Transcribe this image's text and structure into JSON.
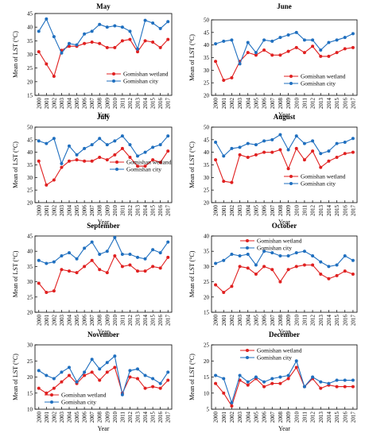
{
  "chart_data": [
    {
      "type": "line",
      "title": "May",
      "xlabel": "Year",
      "ylabel": "Mean of LST (°C)",
      "ylim": [
        15,
        45
      ],
      "yticks": [
        15,
        20,
        25,
        30,
        35,
        40,
        45
      ],
      "x": [
        "2000",
        "2001",
        "2002",
        "2003",
        "2004",
        "2005",
        "2006",
        "2007",
        "2008",
        "2009",
        "2010",
        "2011",
        "2012",
        "2013",
        "2014",
        "2015",
        "2016",
        "2017"
      ],
      "legend_position": "bottom-right",
      "series": [
        {
          "name": "Gomishan wetland",
          "color": "#e02020",
          "values": [
            31,
            26.5,
            22,
            31.5,
            33,
            33,
            34,
            34.5,
            34,
            32.5,
            32.5,
            35,
            35.5,
            31,
            35,
            34.5,
            32.5,
            35.5
          ]
        },
        {
          "name": "Gomishan city",
          "color": "#1f6fbf",
          "values": [
            38.5,
            43,
            36.5,
            30.5,
            34,
            33.5,
            37.5,
            38.5,
            41,
            40,
            40.5,
            40,
            38.5,
            32,
            42.5,
            41.5,
            39.5,
            42
          ]
        }
      ]
    },
    {
      "type": "line",
      "title": "June",
      "xlabel": "Year",
      "ylabel": "Mean of LST (°C)",
      "ylim": [
        20,
        50
      ],
      "yticks": [
        20,
        25,
        30,
        35,
        40,
        45,
        50
      ],
      "x": [
        "2000",
        "2001",
        "2002",
        "2003",
        "2004",
        "2005",
        "2006",
        "2007",
        "2008",
        "2009",
        "2010",
        "2011",
        "2012",
        "2013",
        "2014",
        "2015",
        "2016",
        "2017"
      ],
      "legend_position": "bottom-right",
      "series": [
        {
          "name": "Gomishan wetland",
          "color": "#e02020",
          "values": [
            33.5,
            26,
            27,
            33.5,
            37,
            36,
            38,
            36,
            36,
            37.5,
            39,
            37,
            39.5,
            35.5,
            35.5,
            37,
            38.5,
            39
          ]
        },
        {
          "name": "Gomishan city",
          "color": "#1f6fbf",
          "values": [
            40.5,
            41.5,
            42,
            32.5,
            41,
            37,
            42,
            41.5,
            43,
            44,
            45,
            42,
            42,
            38,
            41,
            42,
            43,
            44.5
          ]
        }
      ]
    },
    {
      "type": "line",
      "title": "July",
      "xlabel": "Year",
      "ylabel": "Mean of LST (°C)",
      "ylim": [
        20,
        50
      ],
      "yticks": [
        20,
        25,
        30,
        35,
        40,
        45,
        50
      ],
      "x": [
        "2000",
        "2001",
        "2002",
        "2003",
        "2004",
        "2005",
        "2006",
        "2007",
        "2008",
        "2009",
        "2010",
        "2011",
        "2012",
        "2013",
        "2014",
        "2015",
        "2016",
        "2017"
      ],
      "legend_position": "middle-right",
      "series": [
        {
          "name": "Gomishan wetland",
          "color": "#e02020",
          "values": [
            36.5,
            27,
            29,
            34,
            36.5,
            37,
            36.5,
            36.5,
            38,
            37,
            39,
            41.5,
            38,
            34.5,
            34.5,
            37,
            36,
            40.5
          ]
        },
        {
          "name": "Gomishan city",
          "color": "#1f6fbf",
          "values": [
            44.5,
            43.5,
            45.5,
            35.5,
            42.5,
            39,
            41.5,
            43,
            45.5,
            43,
            44.5,
            46.5,
            43,
            38.5,
            40,
            42,
            43,
            46.5
          ]
        }
      ]
    },
    {
      "type": "line",
      "title": "August",
      "xlabel": "Year",
      "ylabel": "Mean of LST (°C)",
      "ylim": [
        20,
        50
      ],
      "yticks": [
        20,
        25,
        30,
        35,
        40,
        45,
        50
      ],
      "x": [
        "2000",
        "2001",
        "2002",
        "2003",
        "2004",
        "2005",
        "2006",
        "2007",
        "2008",
        "2009",
        "2010",
        "2011",
        "2012",
        "2013",
        "2014",
        "2015",
        "2016",
        "2017"
      ],
      "legend_position": "bottom-right",
      "series": [
        {
          "name": "Gomishan wetland",
          "color": "#e02020",
          "values": [
            37,
            28.5,
            28,
            39,
            38,
            39,
            40,
            40,
            41,
            33.5,
            41.5,
            37,
            40.5,
            34,
            36.5,
            38,
            39.5,
            40
          ]
        },
        {
          "name": "Gomishan city",
          "color": "#1f6fbf",
          "values": [
            44,
            38.5,
            41.5,
            42,
            43.5,
            43,
            44.5,
            45,
            47,
            41,
            46.5,
            43.5,
            44.5,
            39.5,
            40.5,
            43.5,
            44,
            45.5
          ]
        }
      ]
    },
    {
      "type": "line",
      "title": "September",
      "xlabel": "Year",
      "ylabel": "Mean of LST (°C)",
      "ylim": [
        20,
        45
      ],
      "yticks": [
        20,
        25,
        30,
        35,
        40,
        45
      ],
      "x": [
        "2000",
        "2001",
        "2002",
        "2003",
        "2004",
        "2005",
        "2006",
        "2007",
        "2008",
        "2009",
        "2010",
        "2011",
        "2012",
        "2013",
        "2014",
        "2015",
        "2016",
        "2017"
      ],
      "legend_position": "none",
      "series": [
        {
          "name": "Gomishan wetland",
          "color": "#e02020",
          "values": [
            29.5,
            26.5,
            27,
            34,
            33.5,
            33,
            35,
            37,
            34,
            33,
            38.5,
            35,
            35.5,
            33.5,
            33.5,
            35,
            34.5,
            38
          ]
        },
        {
          "name": "Gomishan city",
          "color": "#1f6fbf",
          "values": [
            37,
            36,
            36.5,
            38.5,
            39.5,
            37.5,
            41,
            43,
            39,
            40,
            44.5,
            39,
            39,
            38,
            37.5,
            40.5,
            39.5,
            43
          ]
        }
      ]
    },
    {
      "type": "line",
      "title": "October",
      "xlabel": "Year",
      "ylabel": "Mean of LST (°C)",
      "ylim": [
        15,
        40
      ],
      "yticks": [
        15,
        20,
        25,
        30,
        35,
        40
      ],
      "x": [
        "2000",
        "2001",
        "2002",
        "2003",
        "2004",
        "2005",
        "2006",
        "2007",
        "2008",
        "2009",
        "2010",
        "2011",
        "2012",
        "2013",
        "2014",
        "2015",
        "2016",
        "2017"
      ],
      "legend_position": "top-right",
      "series": [
        {
          "name": "Gomishan wetland",
          "color": "#e02020",
          "values": [
            24,
            21.5,
            23.5,
            30,
            29.5,
            27.5,
            30,
            29,
            25,
            29,
            30,
            30.5,
            30.5,
            27.5,
            26,
            27,
            28.5,
            27.5
          ]
        },
        {
          "name": "Gomishan city",
          "color": "#1f6fbf",
          "values": [
            31,
            32,
            34,
            33.5,
            34,
            30.5,
            35,
            34.5,
            33.5,
            33.5,
            34.5,
            35,
            33.5,
            31.5,
            30,
            30.5,
            33.5,
            32
          ]
        }
      ]
    },
    {
      "type": "line",
      "title": "November",
      "xlabel": "Year",
      "ylabel": "Mean of LST (°C)",
      "ylim": [
        10,
        30
      ],
      "yticks": [
        10,
        15,
        20,
        25,
        30
      ],
      "x": [
        "2000",
        "2001",
        "2002",
        "2003",
        "2004",
        "2005",
        "2006",
        "2007",
        "2008",
        "2009",
        "2010",
        "2011",
        "2012",
        "2013",
        "2014",
        "2015",
        "2016",
        "2017"
      ],
      "legend_position": "bottom-left",
      "series": [
        {
          "name": "Gomishan wetland",
          "color": "#e02020",
          "values": [
            16.5,
            15,
            16.5,
            18.5,
            20.5,
            18,
            20.5,
            21.5,
            19,
            21.5,
            23,
            15,
            20,
            19.5,
            16.5,
            17,
            16.5,
            19
          ]
        },
        {
          "name": "Gomishan city",
          "color": "#1f6fbf",
          "values": [
            22,
            20.5,
            19.5,
            21.5,
            23,
            18.5,
            21.5,
            25.5,
            22.5,
            24.5,
            26.5,
            14.5,
            22,
            22.5,
            20.5,
            19.5,
            18,
            21.5
          ]
        }
      ]
    },
    {
      "type": "line",
      "title": "December",
      "xlabel": "Year",
      "ylabel": "Mean of LST (°C)",
      "ylim": [
        5,
        25
      ],
      "yticks": [
        5,
        10,
        15,
        20,
        25
      ],
      "x": [
        "2000",
        "2001",
        "2002",
        "2003",
        "2004",
        "2005",
        "2006",
        "2007",
        "2008",
        "2009",
        "2010",
        "2011",
        "2012",
        "2013",
        "2014",
        "2015",
        "2016",
        "2017"
      ],
      "legend_position": "top-right",
      "series": [
        {
          "name": "Gomishan wetland",
          "color": "#e02020",
          "values": [
            13,
            10,
            6,
            14,
            12.5,
            14.5,
            12,
            13,
            13,
            14.5,
            18,
            12,
            14.5,
            11.5,
            12.5,
            12,
            12,
            12
          ]
        },
        {
          "name": "Gomishan city",
          "color": "#1f6fbf",
          "values": [
            15.5,
            14.5,
            7,
            15.5,
            13.5,
            15,
            13.5,
            14.5,
            15,
            15.5,
            20,
            12,
            15,
            13.5,
            13,
            14,
            14,
            14
          ]
        }
      ]
    }
  ]
}
